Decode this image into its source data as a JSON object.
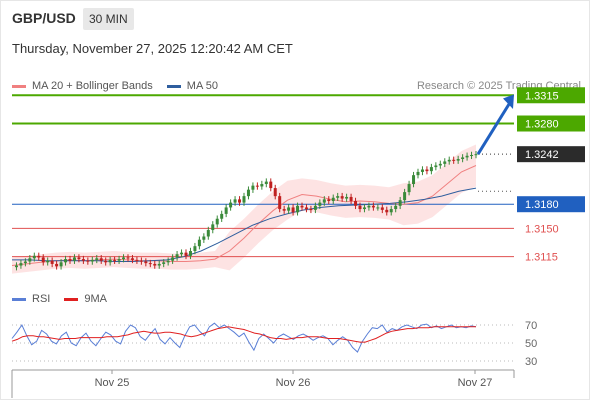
{
  "header": {
    "pair": "GBP/USD",
    "timeframe": "30 MIN",
    "timestamp": "Thursday, November 27, 2025 12:20:42 AM CET",
    "research": "Research © 2025 Trading Central"
  },
  "legend": {
    "ma20": {
      "label": "MA 20 + Bollinger Bands",
      "color": "#f08080"
    },
    "ma50": {
      "label": "MA 50",
      "color": "#2f5e9e"
    }
  },
  "rsi_legend": {
    "rsi": {
      "label": "RSI",
      "color": "#5a7fd6"
    },
    "ma9": {
      "label": "9MA",
      "color": "#e02020"
    }
  },
  "colors": {
    "green": "#4ca800",
    "blue": "#2060c0",
    "red": "#e05050",
    "bull": "#3a8a3a",
    "bear": "#c02020",
    "band": "#fde0e0"
  },
  "chart_data": [
    {
      "type": "candlestick",
      "ylim": [
        1.3096,
        1.3324
      ],
      "x_ticks": [
        "Nov 25",
        "Nov 26",
        "Nov 27"
      ],
      "levels": [
        {
          "label": "1.3315",
          "value": 1.3315,
          "kind": "resistance"
        },
        {
          "label": "1.3280",
          "value": 1.328,
          "kind": "resistance"
        },
        {
          "label": "1.3242",
          "value": 1.3242,
          "kind": "last"
        },
        {
          "label": "1.3180",
          "value": 1.318,
          "kind": "pivot"
        },
        {
          "label": "1.3150",
          "value": 1.315,
          "kind": "support"
        },
        {
          "label": "1.3115",
          "value": 1.3115,
          "kind": "support"
        }
      ],
      "series": [
        {
          "name": "GBP/USD",
          "close_path": [
            1.3102,
            1.3104,
            1.3107,
            1.3109,
            1.3113,
            1.3116,
            1.3114,
            1.3108,
            1.311,
            1.3106,
            1.3103,
            1.3108,
            1.3112,
            1.311,
            1.3114,
            1.3112,
            1.311,
            1.3109,
            1.3111,
            1.3113,
            1.311,
            1.3108,
            1.3111,
            1.311,
            1.3112,
            1.3114,
            1.3113,
            1.3111,
            1.311,
            1.3109,
            1.3107,
            1.3106,
            1.3104,
            1.3106,
            1.3108,
            1.311,
            1.3114,
            1.3118,
            1.312,
            1.3116,
            1.3122,
            1.3128,
            1.3136,
            1.314,
            1.3148,
            1.3155,
            1.3162,
            1.3168,
            1.3176,
            1.3182,
            1.3186,
            1.3182,
            1.319,
            1.3198,
            1.3203,
            1.3202,
            1.3205,
            1.3208,
            1.32,
            1.319,
            1.3174,
            1.3172,
            1.3176,
            1.317,
            1.3178,
            1.3176,
            1.3174,
            1.3173,
            1.3178,
            1.3182,
            1.3186,
            1.3184,
            1.3188,
            1.319,
            1.3187,
            1.3189,
            1.3184,
            1.3178,
            1.3174,
            1.3176,
            1.3178,
            1.3176,
            1.3176,
            1.3173,
            1.317,
            1.3174,
            1.3178,
            1.3185,
            1.3195,
            1.3205,
            1.3216,
            1.322,
            1.3223,
            1.3221,
            1.3226,
            1.3228,
            1.323,
            1.3233,
            1.3235,
            1.3234,
            1.3236,
            1.3238,
            1.324,
            1.3241,
            1.3242
          ]
        },
        {
          "name": "MA 20",
          "values": [
            1.3104,
            1.3106,
            1.3108,
            1.311,
            1.3111,
            1.311,
            1.3111,
            1.3112,
            1.3111,
            1.311,
            1.311,
            1.3109,
            1.3109,
            1.311,
            1.3112,
            1.3122,
            1.3138,
            1.3156,
            1.3172,
            1.3185,
            1.3192,
            1.319,
            1.3186,
            1.3183,
            1.3184,
            1.3183,
            1.3181,
            1.318,
            1.3182,
            1.319,
            1.3205,
            1.322,
            1.3228
          ]
        },
        {
          "name": "MA 50",
          "values": [
            1.3111,
            1.3111,
            1.311,
            1.311,
            1.311,
            1.311,
            1.3109,
            1.3109,
            1.311,
            1.3111,
            1.3115,
            1.3122,
            1.3132,
            1.3143,
            1.3154,
            1.3162,
            1.3168,
            1.3173,
            1.3176,
            1.3178,
            1.3179,
            1.318,
            1.3181,
            1.3183,
            1.3186,
            1.319,
            1.3196,
            1.32
          ]
        }
      ]
    },
    {
      "type": "line",
      "title": "RSI",
      "ylim": [
        20,
        80
      ],
      "y_ticks": [
        "70",
        "50",
        "30"
      ],
      "series": [
        {
          "name": "RSI",
          "values": [
            55,
            62,
            70,
            58,
            48,
            52,
            64,
            60,
            52,
            49,
            58,
            62,
            50,
            47,
            56,
            61,
            52,
            47,
            55,
            62,
            59,
            52,
            49,
            63,
            70,
            67,
            57,
            53,
            60,
            66,
            54,
            49,
            56,
            50,
            45,
            58,
            68,
            70,
            63,
            58,
            68,
            72,
            67,
            70,
            66,
            62,
            57,
            61,
            51,
            42,
            55,
            60,
            55,
            50,
            57,
            60,
            57,
            54,
            58,
            60,
            57,
            53,
            56,
            58,
            55,
            48,
            53,
            57,
            53,
            45,
            40,
            52,
            60,
            67,
            66,
            70,
            62,
            66,
            64,
            68,
            70,
            68,
            66,
            70,
            71,
            67,
            69,
            66,
            68,
            70,
            67,
            68,
            67,
            69,
            68
          ]
        },
        {
          "name": "9MA",
          "values": [
            52,
            54,
            57,
            58,
            58,
            57,
            57,
            56,
            55,
            54,
            55,
            55,
            55,
            56,
            56,
            56,
            56,
            56,
            57,
            57,
            57,
            58,
            59,
            61,
            62,
            63,
            62,
            61,
            61,
            62,
            62,
            61,
            60,
            58,
            57,
            58,
            60,
            62,
            64,
            66,
            67,
            68,
            67,
            66,
            65,
            63,
            61,
            60,
            58,
            56,
            55,
            55,
            54,
            55,
            56,
            56,
            57,
            57,
            57,
            56,
            55,
            55,
            55,
            54,
            53,
            52,
            51,
            51,
            53,
            55,
            58,
            61,
            63,
            64,
            65,
            66,
            66,
            67,
            67,
            67,
            68,
            68,
            68,
            68,
            68,
            68,
            68,
            68,
            68
          ]
        }
      ]
    }
  ]
}
